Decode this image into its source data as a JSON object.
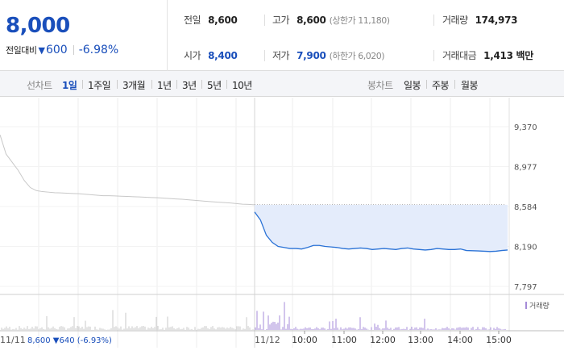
{
  "quote": {
    "price": "8,000",
    "change_label": "전일대비",
    "change_arrow": "▼",
    "change_amount": "600",
    "change_pct": "-6.98%",
    "down_color": "#1a4fbb",
    "stats": {
      "prev_close": {
        "label": "전일",
        "value": "8,600"
      },
      "high": {
        "label": "고가",
        "value": "8,600",
        "note": "(상한가 11,180)"
      },
      "volume": {
        "label": "거래량",
        "value": "174,973"
      },
      "open": {
        "label": "시가",
        "value": "8,400"
      },
      "low": {
        "label": "저가",
        "value": "7,900",
        "note": "(하한가 6,020)"
      },
      "trade_value": {
        "label": "거래대금",
        "value": "1,413 백만"
      }
    }
  },
  "toolbar": {
    "line_chart_label": "선차트",
    "periods": [
      "1일",
      "1주일",
      "3개월",
      "1년",
      "3년",
      "5년",
      "10년"
    ],
    "active_period": "1일",
    "candle_chart_label": "봉차트",
    "candle_periods": [
      "일봉",
      "주봉",
      "월봉"
    ]
  },
  "chart_data": {
    "type": "line",
    "ylim": [
      7797,
      9370
    ],
    "yticks": [
      "9,370",
      "8,977",
      "8,584",
      "8,190",
      "7,797"
    ],
    "reference_price": 8600,
    "x_time_labels": [
      "10:00",
      "11:00",
      "12:00",
      "13:00",
      "14:00",
      "15:00"
    ],
    "prev_day_label": "11/11",
    "today_label": "11/12",
    "prev_day_summary": {
      "close": "8,600",
      "arrow": "▼",
      "change": "640",
      "pct": "(-6.93%)"
    },
    "volume_legend": "거래량",
    "prev_day_series": {
      "name": "11/11",
      "values": [
        9290,
        9100,
        9020,
        8940,
        8840,
        8770,
        8740,
        8730,
        8725,
        8720,
        8718,
        8715,
        8712,
        8710,
        8705,
        8700,
        8695,
        8690,
        8690,
        8688,
        8685,
        8683,
        8680,
        8678,
        8675,
        8672,
        8670,
        8666,
        8662,
        8658,
        8655,
        8650,
        8645,
        8640,
        8635,
        8630,
        8626,
        8622,
        8618,
        8612,
        8606,
        8604,
        8600
      ]
    },
    "today_series": {
      "name": "11/12",
      "values": [
        8530,
        8450,
        8300,
        8230,
        8190,
        8180,
        8170,
        8170,
        8165,
        8180,
        8200,
        8200,
        8190,
        8185,
        8180,
        8170,
        8165,
        8170,
        8175,
        8170,
        8160,
        8165,
        8170,
        8165,
        8160,
        8170,
        8175,
        8165,
        8160,
        8155,
        8160,
        8170,
        8165,
        8160,
        8160,
        8165,
        8150,
        8148,
        8146,
        8143,
        8140,
        8143,
        8150,
        8155
      ]
    },
    "line_color_prev": "#c8c8c8",
    "line_color_today": "#2a72d6",
    "area_color_today": "#e4ecfb",
    "volume_color_prev": "#c8c8c8",
    "volume_color_today": "#a58bd8"
  }
}
